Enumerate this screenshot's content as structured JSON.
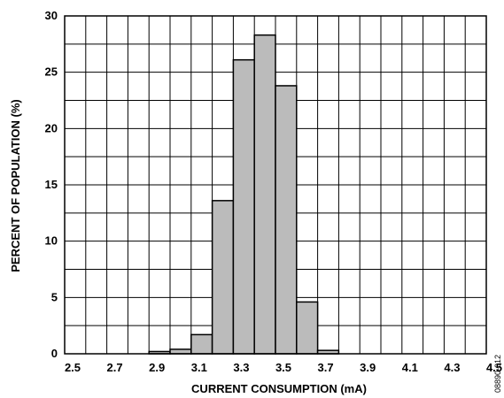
{
  "chart_data": {
    "type": "bar",
    "xlabel": "CURRENT CONSUMPTION (mA)",
    "ylabel": "PERCENT OF POPULATION (%)",
    "xlim": [
      2.5,
      4.5
    ],
    "ylim": [
      0,
      30
    ],
    "x_ticks": [
      "2.5",
      "2.7",
      "2.9",
      "3.1",
      "3.3",
      "3.5",
      "3.7",
      "3.9",
      "4.1",
      "4.3",
      "4.5"
    ],
    "y_ticks": [
      "0",
      "5",
      "10",
      "15",
      "20",
      "25",
      "30"
    ],
    "x_grid_step": 0.1,
    "y_grid_step": 2.5,
    "grid": true,
    "bar_color": "#BBBBBB",
    "bars": [
      {
        "x_start": 2.9,
        "x_end": 3.0,
        "value": 0.2
      },
      {
        "x_start": 3.0,
        "x_end": 3.1,
        "value": 0.4
      },
      {
        "x_start": 3.1,
        "x_end": 3.2,
        "value": 1.7
      },
      {
        "x_start": 3.2,
        "x_end": 3.3,
        "value": 13.6
      },
      {
        "x_start": 3.3,
        "x_end": 3.4,
        "value": 26.1
      },
      {
        "x_start": 3.4,
        "x_end": 3.5,
        "value": 28.3
      },
      {
        "x_start": 3.5,
        "x_end": 3.6,
        "value": 23.8
      },
      {
        "x_start": 3.6,
        "x_end": 3.7,
        "value": 4.6
      },
      {
        "x_start": 3.7,
        "x_end": 3.8,
        "value": 0.3
      }
    ]
  },
  "figure_id": "08890-012"
}
